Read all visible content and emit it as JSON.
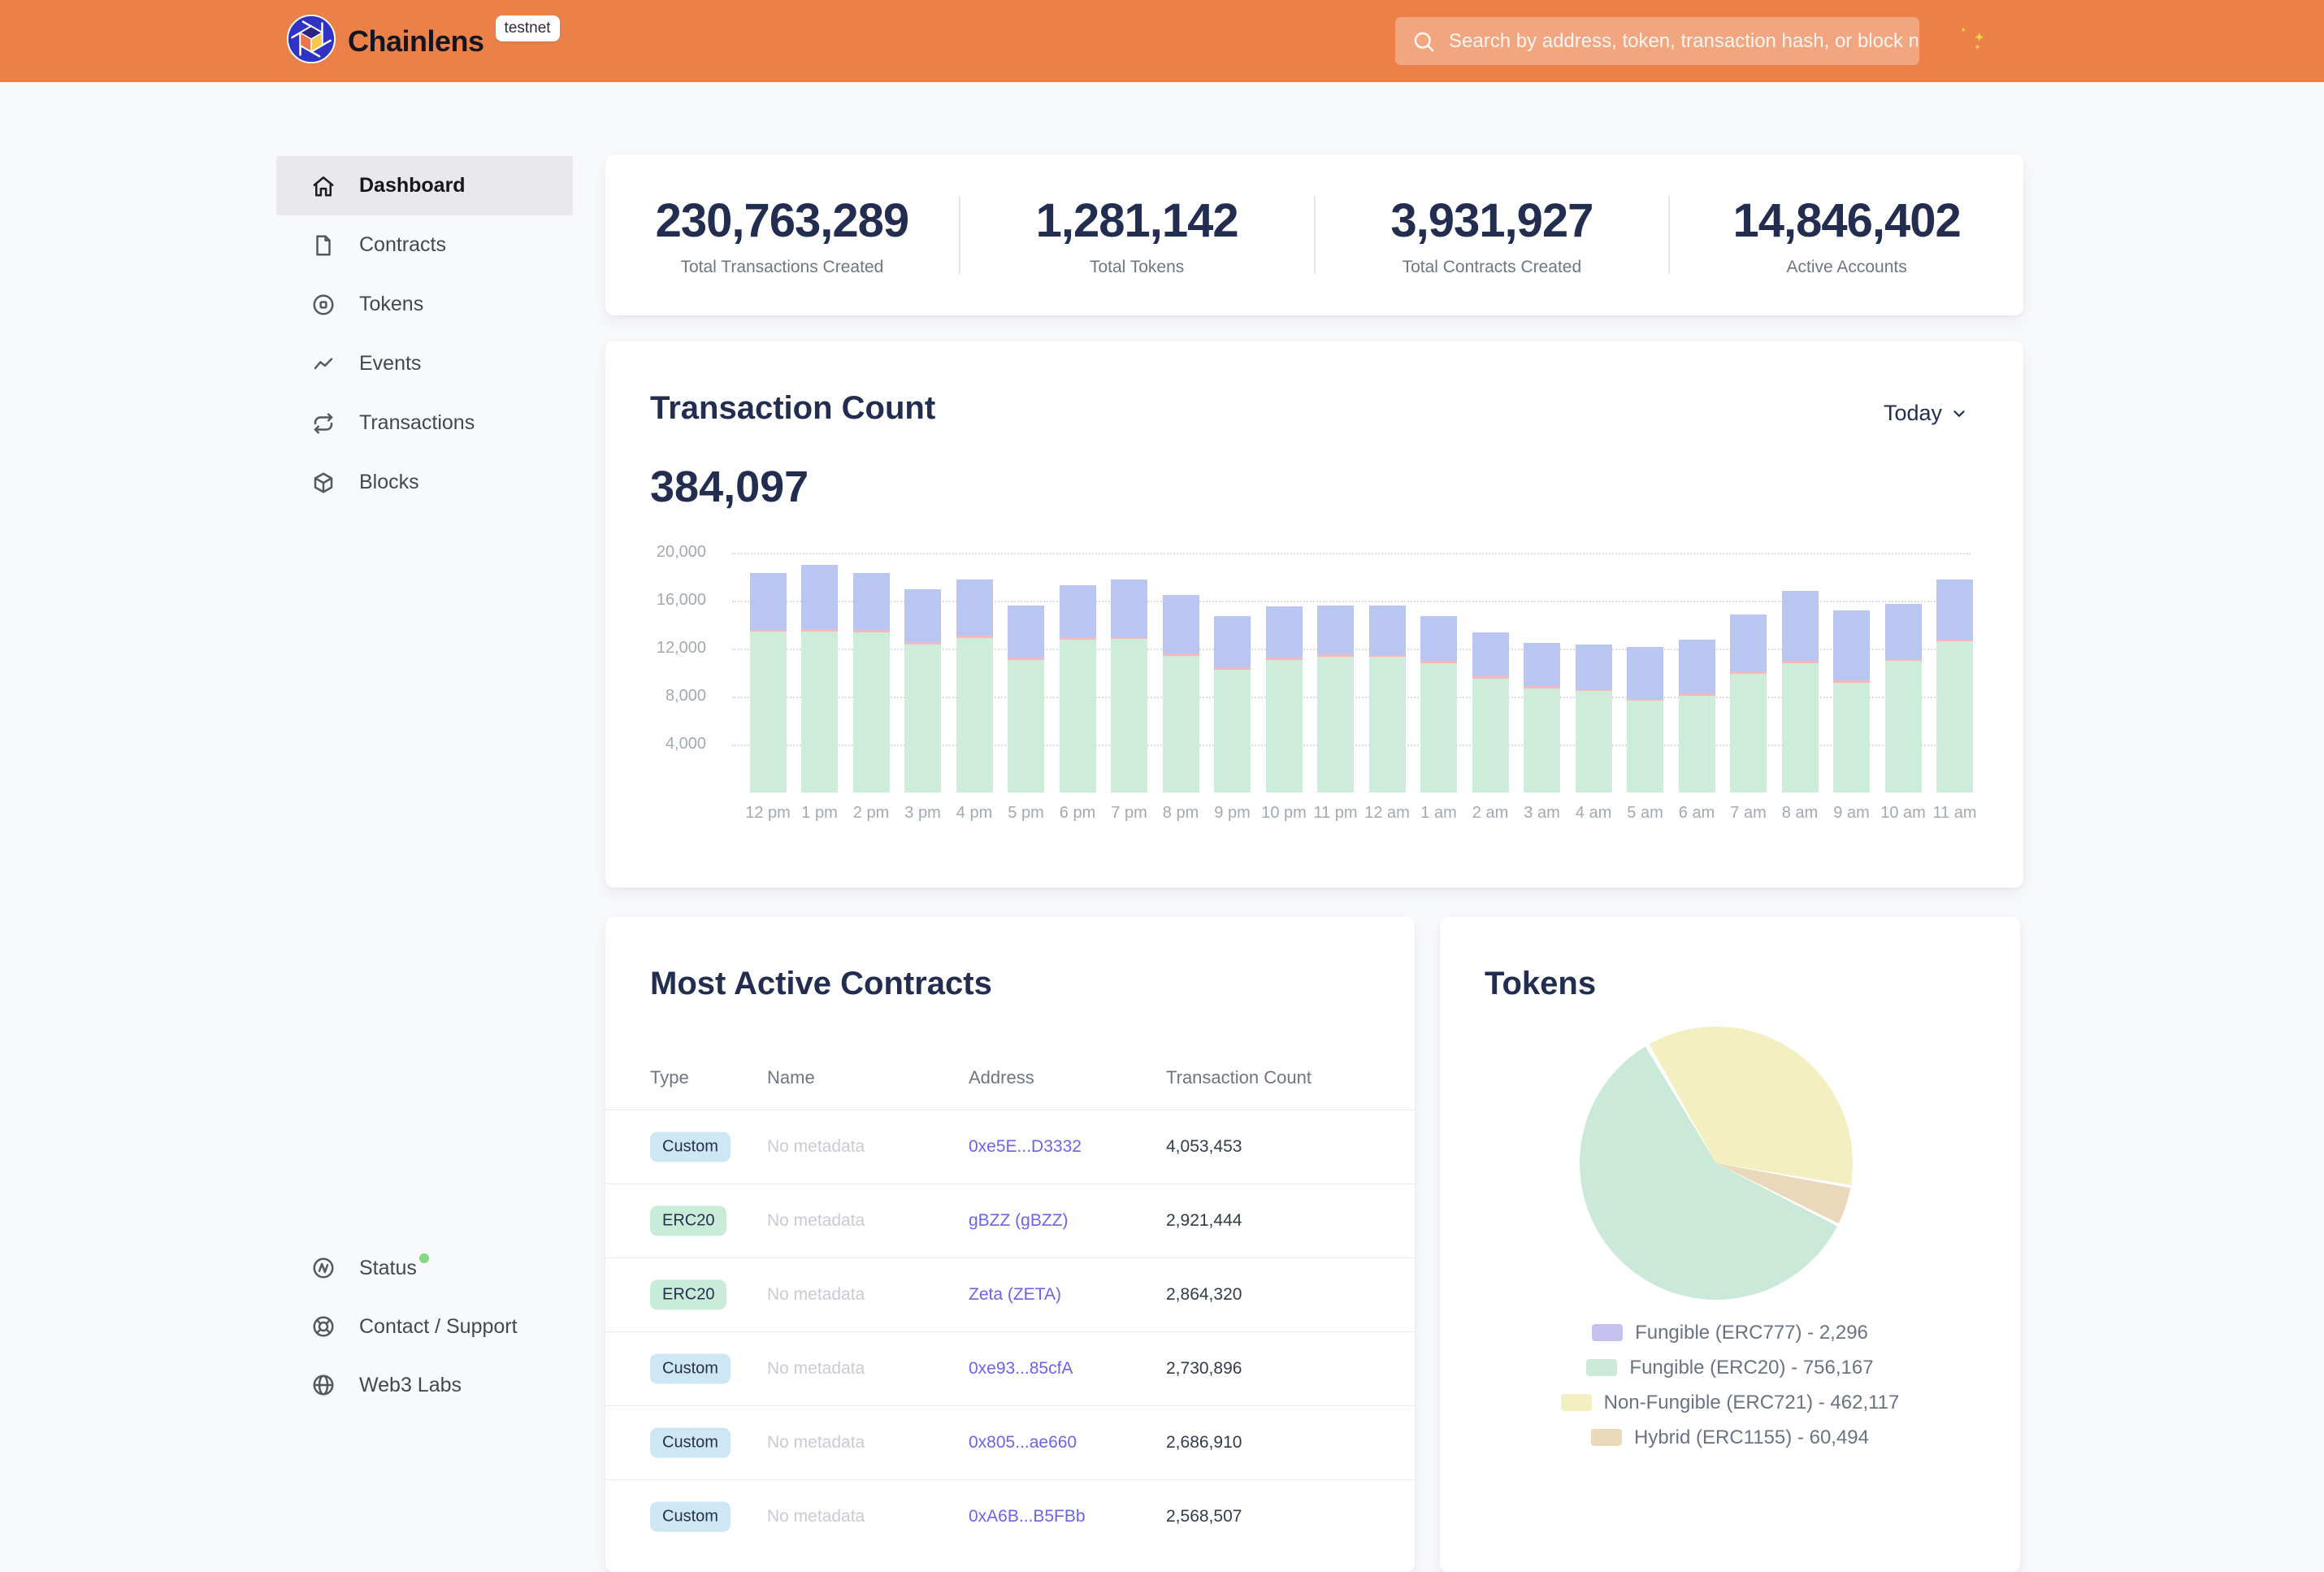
{
  "header": {
    "brand": "Chainlens",
    "environment_badge": "testnet",
    "search_placeholder": "Search by address, token, transaction hash, or block number",
    "header_bg_color": "#ec8049"
  },
  "sidebar": {
    "items": [
      {
        "label": "Dashboard",
        "icon": "home-icon",
        "active": true
      },
      {
        "label": "Contracts",
        "icon": "document-icon",
        "active": false
      },
      {
        "label": "Tokens",
        "icon": "token-disc-icon",
        "active": false
      },
      {
        "label": "Events",
        "icon": "activity-zigzag-icon",
        "active": false
      },
      {
        "label": "Transactions",
        "icon": "repeat-arrows-icon",
        "active": false
      },
      {
        "label": "Blocks",
        "icon": "cube-icon",
        "active": false
      }
    ],
    "footer_items": [
      {
        "label": "Status",
        "icon": "status-pulse-icon",
        "status_dot_color": "#82d982"
      },
      {
        "label": "Contact / Support",
        "icon": "life-buoy-icon"
      },
      {
        "label": "Web3 Labs",
        "icon": "globe-icon"
      }
    ]
  },
  "stats": [
    {
      "value": "230,763,289",
      "label": "Total Transactions Created"
    },
    {
      "value": "1,281,142",
      "label": "Total Tokens"
    },
    {
      "value": "3,931,927",
      "label": "Total Contracts Created"
    },
    {
      "value": "14,846,402",
      "label": "Active Accounts"
    }
  ],
  "transaction_count": {
    "title": "Transaction Count",
    "range_selector": "Today",
    "total": "384,097",
    "chart_data": {
      "type": "bar",
      "stacked": true,
      "title": "Transaction Count",
      "x": [
        "12 pm",
        "1 pm",
        "2 pm",
        "3 pm",
        "4 pm",
        "5 pm",
        "6 pm",
        "7 pm",
        "8 pm",
        "9 pm",
        "10 pm",
        "11 pm",
        "12 am",
        "1 am",
        "2 am",
        "3 am",
        "4 am",
        "5 am",
        "6 am",
        "7 am",
        "8 am",
        "9 am",
        "10 am",
        "11 am"
      ],
      "series": [
        {
          "name": "bottom-segment-green",
          "color": "#cdecd9",
          "values": [
            13400,
            13450,
            13350,
            12350,
            12900,
            11050,
            12750,
            12800,
            11400,
            10250,
            11050,
            11350,
            11300,
            10800,
            9500,
            8700,
            8450,
            7650,
            8100,
            9900,
            10800,
            9150,
            10950,
            12600
          ]
        },
        {
          "name": "middle-segment-pink",
          "color": "#f4b8bd",
          "values": [
            180,
            180,
            180,
            180,
            180,
            180,
            180,
            180,
            180,
            180,
            180,
            180,
            180,
            180,
            180,
            180,
            180,
            180,
            180,
            180,
            180,
            180,
            180,
            180
          ]
        },
        {
          "name": "top-segment-blue",
          "color": "#b9c6f1",
          "values": [
            4700,
            5350,
            4750,
            4450,
            4650,
            4350,
            4350,
            4800,
            4900,
            4250,
            4300,
            4050,
            4100,
            3750,
            3650,
            3600,
            3700,
            4300,
            4450,
            4800,
            5850,
            5850,
            4600,
            5000
          ]
        }
      ],
      "ylim": [
        0,
        20000
      ],
      "y_ticks": [
        4000,
        8000,
        12000,
        16000,
        20000
      ],
      "grid": "dotted-horizontal"
    }
  },
  "most_active_contracts": {
    "title": "Most Active Contracts",
    "columns": [
      "Type",
      "Name",
      "Address",
      "Transaction Count"
    ],
    "badge_colors": {
      "Custom": "#cde7f4",
      "ERC20": "#c9ecd9"
    },
    "rows": [
      {
        "type": "Custom",
        "name": "No metadata",
        "address": "0xe5E...D3332",
        "count": "4,053,453"
      },
      {
        "type": "ERC20",
        "name": "No metadata",
        "address": "gBZZ (gBZZ)",
        "count": "2,921,444"
      },
      {
        "type": "ERC20",
        "name": "No metadata",
        "address": "Zeta (ZETA)",
        "count": "2,864,320"
      },
      {
        "type": "Custom",
        "name": "No metadata",
        "address": "0xe93...85cfA",
        "count": "2,730,896"
      },
      {
        "type": "Custom",
        "name": "No metadata",
        "address": "0x805...ae660",
        "count": "2,686,910"
      },
      {
        "type": "Custom",
        "name": "No metadata",
        "address": "0xA6B...B5FBb",
        "count": "2,568,507"
      }
    ]
  },
  "tokens_panel": {
    "title": "Tokens",
    "chart_data": {
      "type": "pie",
      "slices": [
        {
          "label": "Fungible (ERC777)",
          "value": 2296,
          "display": "2,296",
          "color": "#c4c1ee"
        },
        {
          "label": "Fungible (ERC20)",
          "value": 756167,
          "display": "756,167",
          "color": "#cbe9d8"
        },
        {
          "label": "Non-Fungible (ERC721)",
          "value": 462117,
          "display": "462,117",
          "color": "#f3efc0"
        },
        {
          "label": "Hybrid (ERC1155)",
          "value": 60494,
          "display": "60,494",
          "color": "#e9d8ba"
        }
      ],
      "start_angle_deg": -30,
      "clockwise_draw_order": [
        2,
        3,
        1,
        0
      ],
      "legend_position": "bottom",
      "legend_separator": " - "
    }
  }
}
